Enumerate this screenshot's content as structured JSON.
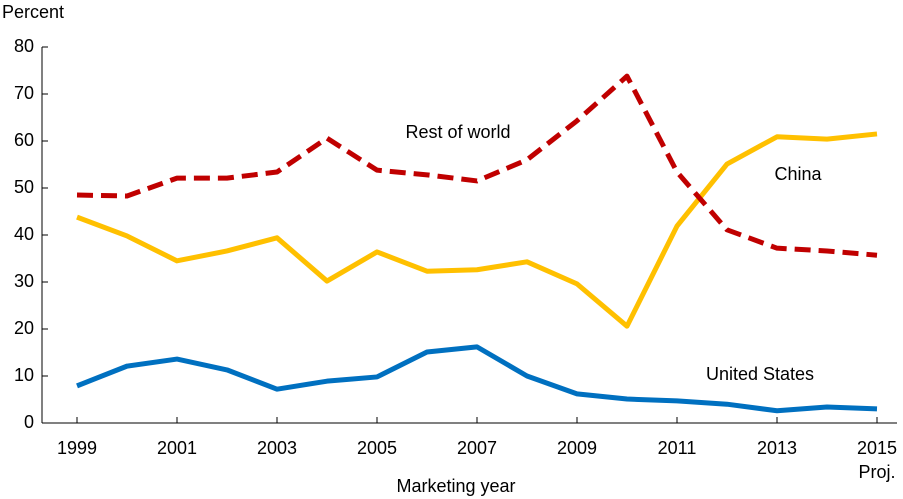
{
  "chart_data": {
    "type": "line",
    "y_label": "Percent",
    "x_label": "Marketing year",
    "annotation": "Proj.",
    "x": [
      1999,
      2000,
      2001,
      2002,
      2003,
      2004,
      2005,
      2006,
      2007,
      2008,
      2009,
      2010,
      2011,
      2012,
      2013,
      2014,
      2015
    ],
    "series": [
      {
        "name": "United States",
        "color": "#0070c0",
        "line_style": "solid",
        "values": [
          7.9,
          12.1,
          13.6,
          11.3,
          7.2,
          8.9,
          9.8,
          15.1,
          16.2,
          10.0,
          6.2,
          5.1,
          4.7,
          4.0,
          2.6,
          3.4,
          3.0
        ]
      },
      {
        "name": "China",
        "color": "#ffc000",
        "line_style": "solid",
        "values": [
          43.8,
          39.8,
          34.5,
          36.6,
          39.4,
          30.2,
          36.4,
          32.3,
          32.6,
          34.3,
          29.6,
          20.6,
          41.9,
          55.1,
          60.9,
          60.4,
          61.5
        ]
      },
      {
        "name": "Rest of world",
        "color": "#c00000",
        "line_style": "dashed",
        "values": [
          48.5,
          48.3,
          52.1,
          52.1,
          53.4,
          60.6,
          53.8,
          52.8,
          51.5,
          56.0,
          64.3,
          73.8,
          53.4,
          41.1,
          37.2,
          36.6,
          35.7
        ]
      }
    ],
    "xlim": [
      1998.3,
      2015.4
    ],
    "xticks": [
      1999,
      2001,
      2003,
      2005,
      2007,
      2009,
      2011,
      2013,
      2015
    ],
    "ylim": [
      0,
      80
    ],
    "yticks": [
      0,
      10,
      20,
      30,
      40,
      50,
      60,
      70,
      80
    ],
    "grid": false
  }
}
